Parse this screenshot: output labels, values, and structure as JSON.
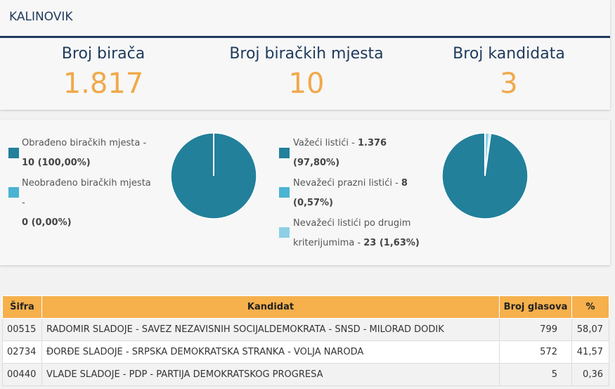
{
  "municipality": "KALINOVIK",
  "stats": [
    {
      "label": "Broj birača",
      "value": "1.817"
    },
    {
      "label": "Broj biračkih mjesta",
      "value": "10"
    },
    {
      "label": "Broj kandidata",
      "value": "3"
    }
  ],
  "colors": {
    "dark_teal": "#22809a",
    "light_blue": "#4bb3d3",
    "pale_blue": "#8dd0e6",
    "orange": "#f6b04c",
    "navy": "#1f3a5c"
  },
  "stations": {
    "processed_label": "Obrađeno biračkih mjesta - ",
    "processed_value": "10 (100,00%)",
    "unprocessed_label": "Neobrađeno biračkih mjesta - ",
    "unprocessed_value": "0 (0,00%)",
    "processed_share": 1.0
  },
  "ballots": {
    "valid_label": "Važeći listići - ",
    "valid_value": "1.376",
    "valid_pct": "(97,80%)",
    "blank_label": "Nevažeći prazni listići - ",
    "blank_value": "8",
    "blank_pct": "(0,57%)",
    "other_label_1": "Nevažeći listići po drugim",
    "other_label_2": "kriterijumima - ",
    "other_value": "23 (1,63%)",
    "shares": [
      0.978,
      0.0057,
      0.0163
    ]
  },
  "table": {
    "headers": {
      "code": "Šifra",
      "candidate": "Kandidat",
      "votes": "Broj glasova",
      "pct": "%"
    },
    "rows": [
      {
        "code": "00515",
        "candidate": "RADOMIR SLADOJE - SAVEZ NEZAVISNIH SOCIJALDEMOKRATA - SNSD - MILORAD DODIK",
        "votes": "799",
        "pct": "58,07"
      },
      {
        "code": "02734",
        "candidate": "ĐORĐE SLADOJE - SRPSKA DEMOKRATSKA STRANKA - VOLJA NARODA",
        "votes": "572",
        "pct": "41,57"
      },
      {
        "code": "00440",
        "candidate": "VLADE SLADOJE - PDP - PARTIJA DEMOKRATSKOG PROGRESA",
        "votes": "5",
        "pct": "0,36"
      }
    ]
  }
}
